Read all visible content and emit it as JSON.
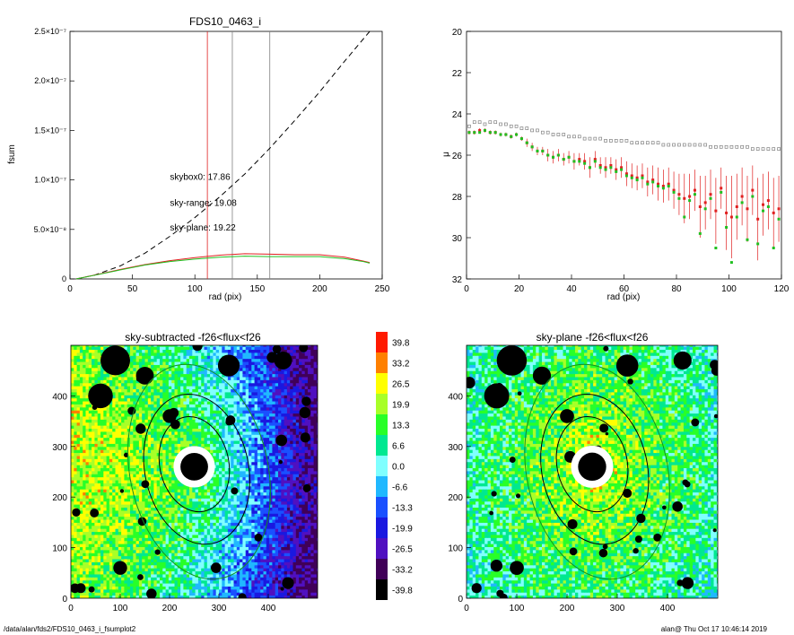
{
  "footer": {
    "left": "/data/alan/fds2/FDS10_0463_i_fsumplot2",
    "right": "alan@  Thu Oct 17 10:46:14 2019"
  },
  "colorbar": {
    "labels": [
      "39.8",
      "33.2",
      "26.5",
      "19.9",
      "13.3",
      "6.6",
      "0.0",
      "-6.6",
      "-13.3",
      "-19.9",
      "-26.5",
      "-33.2",
      "-39.8"
    ],
    "colors": [
      "#ff1a00",
      "#ff8000",
      "#ffff00",
      "#a8ff28",
      "#28ff28",
      "#00e890",
      "#80ffff",
      "#20b8ff",
      "#1a50ff",
      "#1a18e0",
      "#5010c0",
      "#400058",
      "#000000"
    ]
  },
  "chart_data": [
    {
      "type": "line",
      "title": "FDS10_0463_i",
      "xlabel": "rad (pix)",
      "ylabel": "fsum",
      "xlim": [
        0,
        250
      ],
      "ylim": [
        0,
        2.5e-07
      ],
      "xticks": [
        0,
        50,
        100,
        150,
        200,
        250
      ],
      "yticks": [
        0,
        5e-08,
        1e-07,
        1.5e-07,
        2e-07,
        2.5e-07
      ],
      "ytick_labels": [
        "0",
        "5.0×10⁻⁸",
        "1.0×10⁻⁷",
        "1.5×10⁻⁷",
        "2.0×10⁻⁷",
        "2.5×10⁻⁷"
      ],
      "vlines": [
        {
          "x": 110,
          "color": "#e02020"
        },
        {
          "x": 130,
          "color": "#808080"
        },
        {
          "x": 160,
          "color": "#808080"
        }
      ],
      "annotations": [
        {
          "text": "skybox0: 17.86",
          "color": "#000000",
          "x": 80,
          "y": 1e-07
        },
        {
          "text": "sky-range: 19.08",
          "color": "#e02020",
          "x": 80,
          "y": 7.4e-08
        },
        {
          "text": "sky-plane: 19.22",
          "color": "#20c020",
          "x": 80,
          "y": 4.9e-08
        }
      ],
      "series": [
        {
          "color": "#000000",
          "style": "dashed",
          "x": [
            5,
            20,
            40,
            60,
            80,
            100,
            120,
            140,
            160,
            180,
            200,
            220,
            240
          ],
          "y": [
            0,
            4e-09,
            1.3e-08,
            2.6e-08,
            4.3e-08,
            6.2e-08,
            8.3e-08,
            1.06e-07,
            1.32e-07,
            1.6e-07,
            1.89e-07,
            2.2e-07,
            2.5e-07
          ]
        },
        {
          "color": "#e02020",
          "style": "solid",
          "x": [
            5,
            20,
            40,
            60,
            80,
            100,
            120,
            140,
            160,
            180,
            200,
            220,
            235,
            240
          ],
          "y": [
            0,
            4e-09,
            9.5e-09,
            1.45e-08,
            1.85e-08,
            2.15e-08,
            2.4e-08,
            2.55e-08,
            2.5e-08,
            2.45e-08,
            2.45e-08,
            2.2e-08,
            1.8e-08,
            1.65e-08
          ]
        },
        {
          "color": "#20c020",
          "style": "solid",
          "x": [
            5,
            20,
            40,
            60,
            80,
            100,
            120,
            140,
            160,
            180,
            200,
            220,
            235,
            240
          ],
          "y": [
            0,
            3.8e-09,
            9e-09,
            1.4e-08,
            1.75e-08,
            2e-08,
            2.2e-08,
            2.3e-08,
            2.25e-08,
            2.25e-08,
            2.25e-08,
            2.05e-08,
            1.75e-08,
            1.6e-08
          ]
        }
      ]
    },
    {
      "type": "scatter",
      "title": "",
      "xlabel": "rad (pix)",
      "ylabel": "μ",
      "xlim": [
        0,
        120
      ],
      "ylim": [
        32,
        20
      ],
      "xticks": [
        0,
        20,
        40,
        60,
        80,
        100,
        120
      ],
      "yticks": [
        20,
        22,
        24,
        26,
        28,
        30,
        32
      ],
      "series": [
        {
          "color": "#808080",
          "marker": "open-square",
          "x": [
            1,
            3,
            5,
            7,
            9,
            11,
            13,
            15,
            17,
            19,
            21,
            23,
            25,
            27,
            29,
            31,
            33,
            35,
            37,
            39,
            41,
            43,
            45,
            47,
            49,
            51,
            53,
            55,
            57,
            59,
            61,
            63,
            65,
            67,
            69,
            71,
            73,
            75,
            77,
            79,
            81,
            83,
            85,
            87,
            89,
            91,
            93,
            95,
            97,
            99,
            101,
            103,
            105,
            107,
            109,
            111,
            113,
            115,
            117,
            119
          ],
          "y": [
            24.6,
            24.4,
            24.4,
            24.5,
            24.4,
            24.4,
            24.5,
            24.5,
            24.6,
            24.6,
            24.7,
            24.7,
            24.8,
            24.8,
            24.9,
            24.9,
            25.0,
            25.0,
            25.0,
            25.1,
            25.1,
            25.1,
            25.2,
            25.2,
            25.2,
            25.2,
            25.3,
            25.3,
            25.3,
            25.3,
            25.3,
            25.4,
            25.4,
            25.4,
            25.4,
            25.4,
            25.4,
            25.5,
            25.5,
            25.5,
            25.5,
            25.5,
            25.5,
            25.5,
            25.5,
            25.5,
            25.6,
            25.6,
            25.6,
            25.6,
            25.6,
            25.6,
            25.6,
            25.6,
            25.7,
            25.7,
            25.7,
            25.7,
            25.7,
            25.7
          ]
        },
        {
          "color": "#e02020",
          "marker": "filled-square",
          "x": [
            1,
            3,
            5,
            7,
            9,
            11,
            13,
            15,
            17,
            19,
            21,
            23,
            25,
            27,
            29,
            31,
            33,
            35,
            37,
            39,
            41,
            43,
            45,
            47,
            49,
            51,
            53,
            55,
            57,
            59,
            61,
            63,
            65,
            67,
            69,
            71,
            73,
            75,
            77,
            79,
            81,
            83,
            85,
            87,
            89,
            91,
            93,
            95,
            97,
            99,
            101,
            103,
            105,
            107,
            109,
            111,
            113,
            115,
            117,
            119
          ],
          "y": [
            24.9,
            24.9,
            24.8,
            24.8,
            24.9,
            24.9,
            25.0,
            25.0,
            25.1,
            25.0,
            25.2,
            25.4,
            25.6,
            25.8,
            25.8,
            26.0,
            26.1,
            26.0,
            26.2,
            26.1,
            26.3,
            26.2,
            26.3,
            26.6,
            26.2,
            26.5,
            26.6,
            26.5,
            26.7,
            26.6,
            26.9,
            27.0,
            27.1,
            27.0,
            27.3,
            27.2,
            27.4,
            27.5,
            27.4,
            27.7,
            27.9,
            28.1,
            28.0,
            27.7,
            28.5,
            28.3,
            27.9,
            28.7,
            27.6,
            28.8,
            29.0,
            28.5,
            28.0,
            28.6,
            27.7,
            29.1,
            28.4,
            28.2,
            28.8,
            28.6
          ],
          "err": [
            0.1,
            0.1,
            0.1,
            0.1,
            0.1,
            0.1,
            0.1,
            0.1,
            0.1,
            0.1,
            0.1,
            0.2,
            0.2,
            0.2,
            0.2,
            0.3,
            0.3,
            0.3,
            0.3,
            0.3,
            0.4,
            0.3,
            0.4,
            0.5,
            0.4,
            0.4,
            0.5,
            0.4,
            0.5,
            0.5,
            0.6,
            0.6,
            0.6,
            0.6,
            0.7,
            0.7,
            0.8,
            0.8,
            0.8,
            0.9,
            1.0,
            1.2,
            1.1,
            1.0,
            1.5,
            1.3,
            1.2,
            1.6,
            1.0,
            1.8,
            2.0,
            1.6,
            1.4,
            1.6,
            1.2,
            2.0,
            1.5,
            1.4,
            1.7,
            1.6
          ]
        },
        {
          "color": "#20c020",
          "marker": "filled-square",
          "x": [
            1,
            3,
            5,
            7,
            9,
            11,
            13,
            15,
            17,
            19,
            21,
            23,
            25,
            27,
            29,
            31,
            33,
            35,
            37,
            39,
            41,
            43,
            45,
            47,
            49,
            51,
            53,
            55,
            57,
            59,
            61,
            63,
            65,
            67,
            69,
            71,
            73,
            75,
            77,
            79,
            81,
            83,
            85,
            87,
            89,
            91,
            93,
            95,
            97,
            99,
            101,
            103,
            105,
            107,
            109,
            111,
            113,
            115,
            117,
            119
          ],
          "y": [
            24.9,
            24.9,
            24.9,
            24.8,
            24.9,
            24.9,
            25.0,
            25.0,
            25.1,
            25.0,
            25.2,
            25.4,
            25.6,
            25.8,
            25.8,
            26.0,
            26.1,
            26.0,
            26.2,
            26.1,
            26.3,
            26.3,
            26.4,
            26.6,
            26.3,
            26.6,
            26.7,
            26.6,
            26.8,
            26.7,
            27.0,
            27.1,
            27.2,
            27.1,
            27.4,
            27.3,
            27.5,
            27.6,
            27.5,
            27.8,
            28.1,
            29.0,
            28.2,
            27.9,
            29.8,
            28.6,
            28.1,
            30.5,
            27.8,
            29.5,
            31.2,
            29.0,
            28.3,
            30.1,
            28.0,
            30.3,
            28.7,
            28.5,
            30.5,
            29.1
          ]
        }
      ]
    },
    {
      "type": "heatmap",
      "title": "sky-subtracted -f26<flux<f26",
      "xlabel": "",
      "ylabel": "",
      "xlim": [
        0,
        500
      ],
      "ylim": [
        0,
        500
      ],
      "xticks": [
        0,
        100,
        200,
        300,
        400
      ],
      "yticks": [
        0,
        100,
        200,
        300,
        400
      ],
      "center": [
        250,
        260
      ],
      "ellipses": [
        {
          "cx": 250,
          "cy": 265,
          "rx": 70,
          "ry": 95,
          "color": "#000000"
        },
        {
          "cx": 255,
          "cy": 255,
          "rx": 105,
          "ry": 150,
          "color": "#000000"
        },
        {
          "cx": 260,
          "cy": 250,
          "rx": 140,
          "ry": 215,
          "color": "#109020"
        }
      ]
    },
    {
      "type": "heatmap",
      "title": "sky-plane -f26<flux<f26",
      "xlabel": "",
      "ylabel": "",
      "xlim": [
        0,
        500
      ],
      "ylim": [
        0,
        500
      ],
      "xticks": [
        0,
        100,
        200,
        300,
        400
      ],
      "yticks": [
        0,
        100,
        200,
        300,
        400
      ],
      "center": [
        250,
        260
      ],
      "ellipses": [
        {
          "cx": 250,
          "cy": 265,
          "rx": 70,
          "ry": 95,
          "color": "#000000"
        },
        {
          "cx": 255,
          "cy": 255,
          "rx": 105,
          "ry": 150,
          "color": "#000000"
        },
        {
          "cx": 260,
          "cy": 250,
          "rx": 140,
          "ry": 215,
          "color": "#109020"
        }
      ]
    }
  ]
}
